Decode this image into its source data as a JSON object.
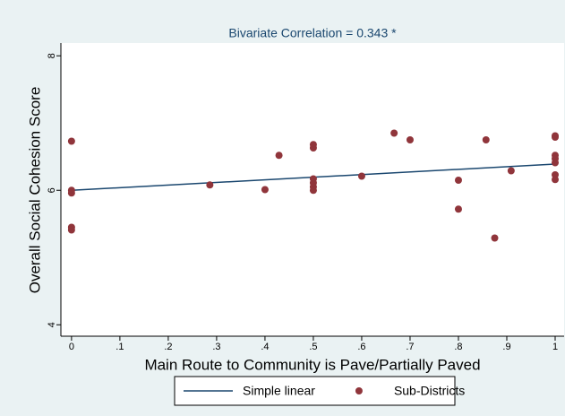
{
  "chart_data": {
    "type": "scatter",
    "title": "Bivariate Correlation = 0.343 *",
    "x_label": "Main Route to Community is Pave/Partially Paved",
    "y_label": "Overall Social Cohesion Score",
    "xlim": [
      -0.022,
      1.0185
    ],
    "ylim": [
      3.83,
      8.19
    ],
    "xticks": [
      0,
      {
        "value": 0.1,
        "label": ".1"
      },
      {
        "value": 0.2,
        "label": ".2"
      },
      {
        "value": 0.3,
        "label": ".3"
      },
      {
        "value": 0.4,
        "label": ".4"
      },
      {
        "value": 0.5,
        "label": ".5"
      },
      {
        "value": 0.6,
        "label": ".6"
      },
      {
        "value": 0.7,
        "label": ".7"
      },
      {
        "value": 0.8,
        "label": ".8"
      },
      {
        "value": 0.9,
        "label": ".9"
      },
      1
    ],
    "yticks": [
      4,
      6,
      8
    ],
    "series": [
      {
        "name": "Simple linear",
        "color": "#1a476f",
        "type": "line",
        "x": [
          0,
          1
        ],
        "values": [
          6.0,
          6.39
        ]
      },
      {
        "name": "Sub-Districts",
        "color": "#90353b",
        "type": "scatter",
        "x": [
          0,
          0,
          0,
          0,
          0,
          0.286,
          0.4,
          0.429,
          0.5,
          0.5,
          0.5,
          0.5,
          0.5,
          0.5,
          0.6,
          0.667,
          0.7,
          0.8,
          0.8,
          0.857,
          0.875,
          0.909,
          1,
          1,
          1,
          1,
          1,
          1,
          1
        ],
        "values": [
          6.73,
          6.0,
          5.96,
          5.45,
          5.41,
          6.08,
          6.01,
          6.52,
          6.68,
          6.63,
          6.17,
          6.11,
          6.05,
          6.0,
          6.21,
          6.85,
          6.75,
          6.15,
          5.72,
          6.75,
          5.29,
          6.29,
          6.81,
          6.79,
          6.52,
          6.47,
          6.41,
          6.23,
          6.16
        ]
      }
    ]
  }
}
